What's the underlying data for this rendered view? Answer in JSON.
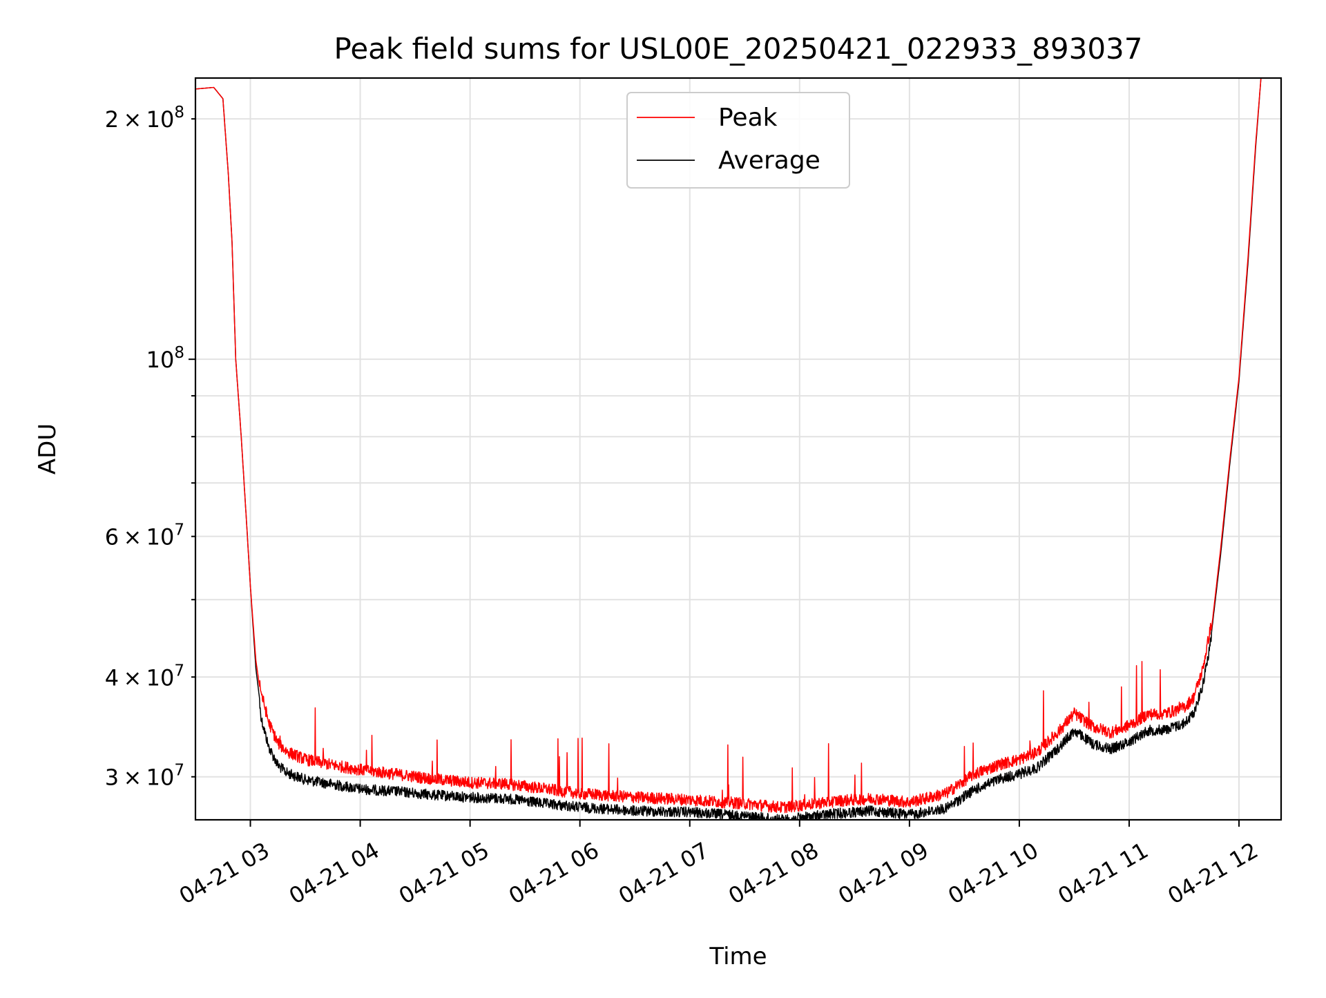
{
  "chart_data": {
    "type": "line",
    "title": "Peak field sums for USL00E_20250421_022933_893037",
    "xlabel": "Time",
    "ylabel": "ADU",
    "yscale": "log",
    "grid": true,
    "legend_placement": "top-center",
    "xlim": [
      "2025-04-21 02:30",
      "2025-04-21 12:23"
    ],
    "ylim": [
      26500000,
      225000000
    ],
    "x_ticks": [
      {
        "value": "2025-04-21 03:00",
        "label": "04-21 03"
      },
      {
        "value": "2025-04-21 04:00",
        "label": "04-21 04"
      },
      {
        "value": "2025-04-21 05:00",
        "label": "04-21 05"
      },
      {
        "value": "2025-04-21 06:00",
        "label": "04-21 06"
      },
      {
        "value": "2025-04-21 07:00",
        "label": "04-21 07"
      },
      {
        "value": "2025-04-21 08:00",
        "label": "04-21 08"
      },
      {
        "value": "2025-04-21 09:00",
        "label": "04-21 09"
      },
      {
        "value": "2025-04-21 10:00",
        "label": "04-21 10"
      },
      {
        "value": "2025-04-21 11:00",
        "label": "04-21 11"
      },
      {
        "value": "2025-04-21 12:00",
        "label": "04-21 12"
      }
    ],
    "y_major_ticks": [
      {
        "value": 100000000,
        "mantissa": "",
        "base": "10",
        "exp": "8"
      }
    ],
    "y_minor_ticks": [
      {
        "value": 30000000,
        "mantissa": "3",
        "base": "10",
        "exp": "7"
      },
      {
        "value": 40000000,
        "mantissa": "4",
        "base": "10",
        "exp": "7"
      },
      {
        "value": 50000000,
        "mantissa": "",
        "base": "",
        "exp": ""
      },
      {
        "value": 60000000,
        "mantissa": "6",
        "base": "10",
        "exp": "7"
      },
      {
        "value": 70000000,
        "mantissa": "",
        "base": "",
        "exp": ""
      },
      {
        "value": 80000000,
        "mantissa": "",
        "base": "",
        "exp": ""
      },
      {
        "value": 90000000,
        "mantissa": "",
        "base": "",
        "exp": ""
      },
      {
        "value": 200000000,
        "mantissa": "2",
        "base": "10",
        "exp": "8"
      }
    ],
    "series": [
      {
        "name": "Peak",
        "color": "#ff0000",
        "noise": "spiky-up",
        "points": [
          [
            "2025-04-21 02:30",
            218000000
          ],
          [
            "2025-04-21 02:40",
            219000000
          ],
          [
            "2025-04-21 02:45",
            212000000
          ],
          [
            "2025-04-21 02:48",
            170000000
          ],
          [
            "2025-04-21 02:50",
            140000000
          ],
          [
            "2025-04-21 02:52",
            100000000
          ],
          [
            "2025-04-21 02:55",
            80000000
          ],
          [
            "2025-04-21 02:58",
            62000000
          ],
          [
            "2025-04-21 03:00",
            52000000
          ],
          [
            "2025-04-21 03:03",
            42000000
          ],
          [
            "2025-04-21 03:06",
            37500000
          ],
          [
            "2025-04-21 03:10",
            34500000
          ],
          [
            "2025-04-21 03:15",
            32500000
          ],
          [
            "2025-04-21 03:20",
            31700000
          ],
          [
            "2025-04-21 03:30",
            31000000
          ],
          [
            "2025-04-21 03:45",
            30500000
          ],
          [
            "2025-04-21 04:00",
            30100000
          ],
          [
            "2025-04-21 04:20",
            29700000
          ],
          [
            "2025-04-21 04:40",
            29300000
          ],
          [
            "2025-04-21 05:00",
            29000000
          ],
          [
            "2025-04-21 05:20",
            28900000
          ],
          [
            "2025-04-21 05:40",
            28500000
          ],
          [
            "2025-04-21 06:00",
            28100000
          ],
          [
            "2025-04-21 06:30",
            27800000
          ],
          [
            "2025-04-21 07:00",
            27600000
          ],
          [
            "2025-04-21 07:30",
            27300000
          ],
          [
            "2025-04-21 07:50",
            27000000
          ],
          [
            "2025-04-21 08:00",
            27150000
          ],
          [
            "2025-04-21 08:20",
            27500000
          ],
          [
            "2025-04-21 08:40",
            27700000
          ],
          [
            "2025-04-21 09:00",
            27400000
          ],
          [
            "2025-04-21 09:20",
            28100000
          ],
          [
            "2025-04-21 09:35",
            29700000
          ],
          [
            "2025-04-21 09:50",
            30600000
          ],
          [
            "2025-04-21 10:00",
            31000000
          ],
          [
            "2025-04-21 10:10",
            31700000
          ],
          [
            "2025-04-21 10:22",
            33700000
          ],
          [
            "2025-04-21 10:30",
            35400000
          ],
          [
            "2025-04-21 10:40",
            34100000
          ],
          [
            "2025-04-21 10:50",
            33500000
          ],
          [
            "2025-04-21 11:00",
            34200000
          ],
          [
            "2025-04-21 11:10",
            35300000
          ],
          [
            "2025-04-21 11:20",
            35400000
          ],
          [
            "2025-04-21 11:30",
            36000000
          ],
          [
            "2025-04-21 11:35",
            37000000
          ],
          [
            "2025-04-21 11:40",
            40000000
          ],
          [
            "2025-04-21 11:45",
            46000000
          ],
          [
            "2025-04-21 11:50",
            58000000
          ],
          [
            "2025-04-21 11:55",
            75000000
          ],
          [
            "2025-04-21 12:00",
            95000000
          ],
          [
            "2025-04-21 12:05",
            135000000
          ],
          [
            "2025-04-21 12:09",
            185000000
          ],
          [
            "2025-04-21 12:12",
            225000000
          ]
        ]
      },
      {
        "name": "Average",
        "color": "#000000",
        "noise": "spiky-down",
        "points": [
          [
            "2025-04-21 02:30",
            218000000
          ],
          [
            "2025-04-21 02:40",
            219000000
          ],
          [
            "2025-04-21 02:45",
            212000000
          ],
          [
            "2025-04-21 02:48",
            170000000
          ],
          [
            "2025-04-21 02:50",
            140000000
          ],
          [
            "2025-04-21 02:52",
            100000000
          ],
          [
            "2025-04-21 02:55",
            80000000
          ],
          [
            "2025-04-21 02:58",
            62000000
          ],
          [
            "2025-04-21 03:00",
            52000000
          ],
          [
            "2025-04-21 03:03",
            41000000
          ],
          [
            "2025-04-21 03:06",
            36000000
          ],
          [
            "2025-04-21 03:10",
            33200000
          ],
          [
            "2025-04-21 03:15",
            31500000
          ],
          [
            "2025-04-21 03:20",
            30800000
          ],
          [
            "2025-04-21 03:30",
            30200000
          ],
          [
            "2025-04-21 03:45",
            29800000
          ],
          [
            "2025-04-21 04:00",
            29400000
          ],
          [
            "2025-04-21 04:20",
            29200000
          ],
          [
            "2025-04-21 04:40",
            28900000
          ],
          [
            "2025-04-21 05:00",
            28700000
          ],
          [
            "2025-04-21 05:20",
            28600000
          ],
          [
            "2025-04-21 05:40",
            28200000
          ],
          [
            "2025-04-21 06:00",
            27900000
          ],
          [
            "2025-04-21 06:30",
            27600000
          ],
          [
            "2025-04-21 07:00",
            27500000
          ],
          [
            "2025-04-21 07:30",
            27200000
          ],
          [
            "2025-04-21 07:50",
            26900000
          ],
          [
            "2025-04-21 08:00",
            27050000
          ],
          [
            "2025-04-21 08:20",
            27400000
          ],
          [
            "2025-04-21 08:40",
            27600000
          ],
          [
            "2025-04-21 09:00",
            27300000
          ],
          [
            "2025-04-21 09:20",
            27800000
          ],
          [
            "2025-04-21 09:35",
            29300000
          ],
          [
            "2025-04-21 09:50",
            30300000
          ],
          [
            "2025-04-21 10:00",
            30700000
          ],
          [
            "2025-04-21 10:10",
            31300000
          ],
          [
            "2025-04-21 10:22",
            33200000
          ],
          [
            "2025-04-21 10:30",
            34800000
          ],
          [
            "2025-04-21 10:40",
            33500000
          ],
          [
            "2025-04-21 10:50",
            33000000
          ],
          [
            "2025-04-21 11:00",
            33700000
          ],
          [
            "2025-04-21 11:10",
            34800000
          ],
          [
            "2025-04-21 11:20",
            34900000
          ],
          [
            "2025-04-21 11:30",
            35500000
          ],
          [
            "2025-04-21 11:35",
            36500000
          ],
          [
            "2025-04-21 11:40",
            39500000
          ],
          [
            "2025-04-21 11:45",
            45500000
          ],
          [
            "2025-04-21 11:50",
            57000000
          ],
          [
            "2025-04-21 11:55",
            74000000
          ],
          [
            "2025-04-21 12:00",
            94000000
          ],
          [
            "2025-04-21 12:05",
            133000000
          ],
          [
            "2025-04-21 12:09",
            183000000
          ],
          [
            "2025-04-21 12:12",
            225000000
          ]
        ]
      }
    ]
  }
}
